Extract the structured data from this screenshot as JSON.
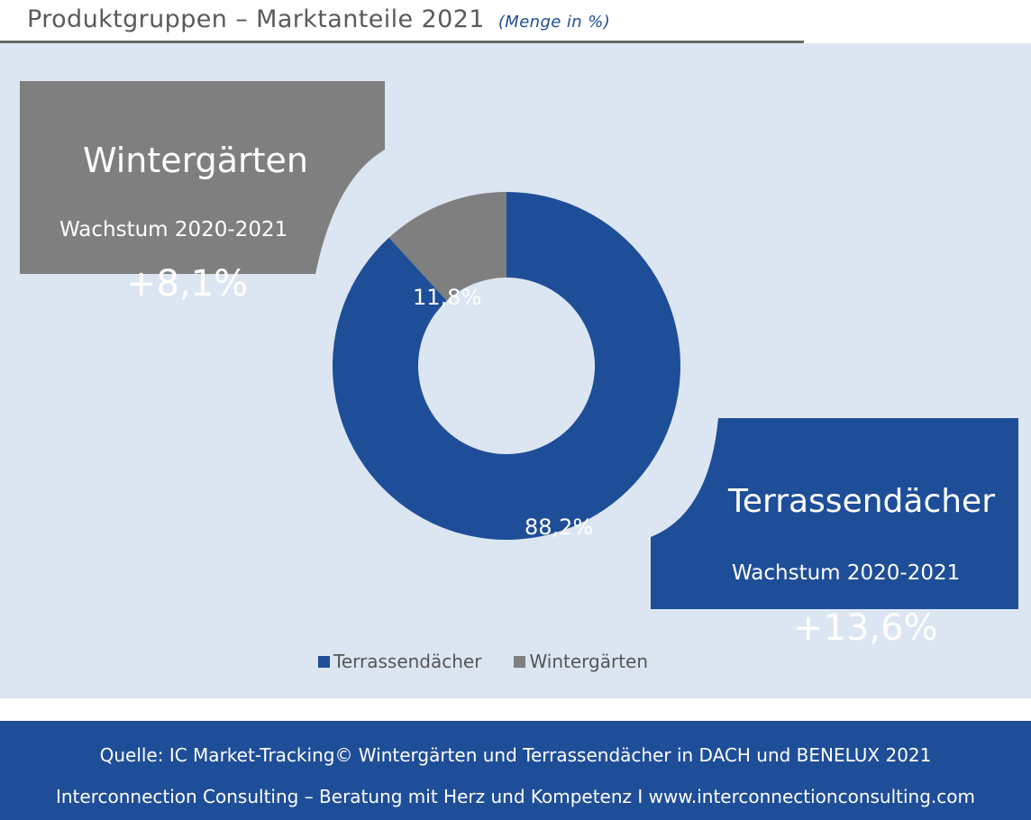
{
  "header": {
    "title": "Produktgruppen  – Marktanteile 2021",
    "subtitle": "(Menge in %)"
  },
  "callouts": {
    "wintergaerten": {
      "name": "Wintergärten",
      "growth_label": "Wachstum 2020-2021",
      "growth_value": "+8,1%",
      "color": "#7f7f7f"
    },
    "terrassendaecher": {
      "name": "Terrassendächer",
      "growth_label": "Wachstum 2020-2021",
      "growth_value": "+13,6%",
      "color": "#1f4e99"
    }
  },
  "chart_data": {
    "type": "donut",
    "categories": [
      "Terrassendächer",
      "Wintergärten"
    ],
    "values": [
      88.2,
      11.8
    ],
    "value_labels": [
      "88,2%",
      "11,8%"
    ],
    "colors": [
      "#1f4e99",
      "#7f7f7f"
    ],
    "legend_position": "bottom"
  },
  "legend": {
    "items": [
      {
        "label": "Terrassendächer",
        "color": "#1f4e99"
      },
      {
        "label": "Wintergärten",
        "color": "#7f7f7f"
      }
    ]
  },
  "footer": {
    "line1": "Quelle: IC Market-Tracking© Wintergärten und Terrassendächer in DACH und BENELUX 2021",
    "line2": "Interconnection Consulting – Beratung mit Herz und Kompetenz  I  www.interconnectionconsulting.com"
  }
}
